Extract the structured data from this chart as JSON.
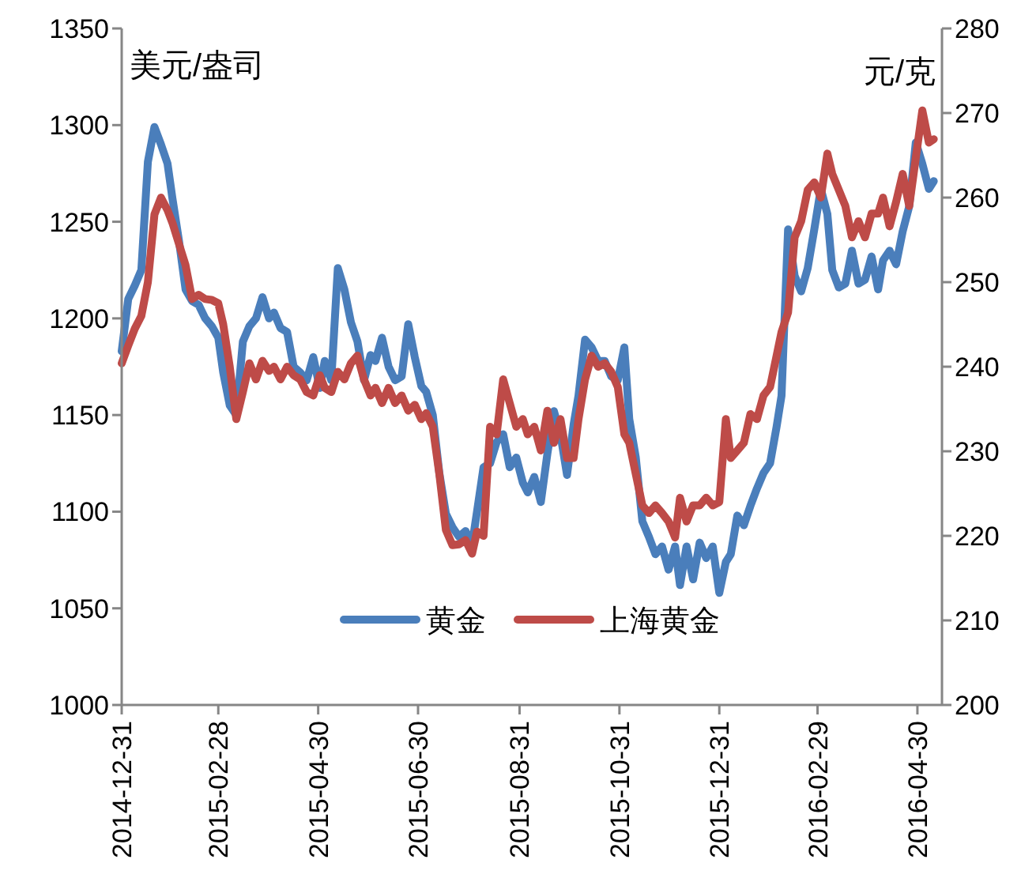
{
  "chart_data": {
    "type": "line",
    "ylabel": "美元/盎司",
    "y2label": "元/克",
    "x": [
      "2014-12-31",
      "2015-01-04",
      "2015-01-08",
      "2015-01-12",
      "2015-01-16",
      "2015-01-20",
      "2015-01-24",
      "2015-01-28",
      "2015-01-31",
      "2015-02-04",
      "2015-02-08",
      "2015-02-12",
      "2015-02-16",
      "2015-02-20",
      "2015-02-24",
      "2015-02-28",
      "2015-03-03",
      "2015-03-07",
      "2015-03-11",
      "2015-03-15",
      "2015-03-19",
      "2015-03-23",
      "2015-03-27",
      "2015-03-31",
      "2015-04-03",
      "2015-04-07",
      "2015-04-11",
      "2015-04-15",
      "2015-04-19",
      "2015-04-23",
      "2015-04-27",
      "2015-05-01",
      "2015-05-04",
      "2015-05-08",
      "2015-05-12",
      "2015-05-16",
      "2015-05-20",
      "2015-05-24",
      "2015-05-28",
      "2015-06-01",
      "2015-06-04",
      "2015-06-08",
      "2015-06-12",
      "2015-06-16",
      "2015-06-20",
      "2015-06-24",
      "2015-06-28",
      "2015-07-02",
      "2015-07-05",
      "2015-07-09",
      "2015-07-13",
      "2015-07-17",
      "2015-07-21",
      "2015-07-25",
      "2015-07-29",
      "2015-08-02",
      "2015-08-05",
      "2015-08-09",
      "2015-08-13",
      "2015-08-17",
      "2015-08-21",
      "2015-08-25",
      "2015-08-29",
      "2015-09-02",
      "2015-09-05",
      "2015-09-09",
      "2015-09-13",
      "2015-09-17",
      "2015-09-21",
      "2015-09-25",
      "2015-09-29",
      "2015-10-03",
      "2015-10-06",
      "2015-10-10",
      "2015-10-14",
      "2015-10-18",
      "2015-10-22",
      "2015-10-26",
      "2015-10-30",
      "2015-11-03",
      "2015-11-06",
      "2015-11-10",
      "2015-11-14",
      "2015-11-18",
      "2015-11-22",
      "2015-11-26",
      "2015-11-30",
      "2015-12-04",
      "2015-12-07",
      "2015-12-11",
      "2015-12-15",
      "2015-12-19",
      "2015-12-23",
      "2015-12-27",
      "2015-12-31",
      "2016-01-04",
      "2016-01-07",
      "2016-01-11",
      "2016-01-15",
      "2016-01-19",
      "2016-01-23",
      "2016-01-27",
      "2016-01-31",
      "2016-02-04",
      "2016-02-07",
      "2016-02-11",
      "2016-02-15",
      "2016-02-19",
      "2016-02-23",
      "2016-02-27",
      "2016-03-02",
      "2016-03-06",
      "2016-03-09",
      "2016-03-13",
      "2016-03-17",
      "2016-03-21",
      "2016-03-25",
      "2016-03-29",
      "2016-04-02",
      "2016-04-06",
      "2016-04-09",
      "2016-04-13",
      "2016-04-17",
      "2016-04-21",
      "2016-04-25",
      "2016-04-29",
      "2016-05-03",
      "2016-05-07",
      "2016-05-10"
    ],
    "series": [
      {
        "name": "黄金",
        "color": "#4a7ebb",
        "axis": "y",
        "values": [
          1183,
          1210,
          1217,
          1225,
          1281,
          1299,
          1290,
          1280,
          1262,
          1240,
          1215,
          1209,
          1207,
          1200,
          1196,
          1190,
          1172,
          1155,
          1150,
          1188,
          1196,
          1200,
          1211,
          1200,
          1203,
          1195,
          1193,
          1175,
          1172,
          1168,
          1180,
          1164,
          1178,
          1168,
          1226,
          1215,
          1198,
          1188,
          1168,
          1181,
          1178,
          1190,
          1175,
          1168,
          1170,
          1197,
          1180,
          1165,
          1162,
          1150,
          1120,
          1099,
          1092,
          1087,
          1090,
          1083,
          1100,
          1123,
          1125,
          1136,
          1140,
          1123,
          1128,
          1115,
          1110,
          1118,
          1105,
          1130,
          1152,
          1140,
          1119,
          1145,
          1160,
          1189,
          1185,
          1178,
          1178,
          1170,
          1168,
          1185,
          1148,
          1128,
          1095,
          1087,
          1078,
          1082,
          1070,
          1082,
          1062,
          1082,
          1065,
          1084,
          1076,
          1082,
          1058,
          1074,
          1078,
          1098,
          1093,
          1103,
          1112,
          1120,
          1125,
          1144,
          1160,
          1246,
          1222,
          1214,
          1226,
          1246,
          1267,
          1254,
          1225,
          1216,
          1218,
          1235,
          1218,
          1220,
          1232,
          1215,
          1230,
          1235,
          1228,
          1245,
          1258,
          1291,
          1280,
          1267,
          1271
        ]
      },
      {
        "name": "上海黄金",
        "color": "#be4b48",
        "axis": "y2",
        "values": [
          240.4,
          242.5,
          244.5,
          246,
          250,
          258,
          260,
          258.5,
          257,
          254.5,
          252,
          248,
          248.5,
          248,
          247.9,
          247.5,
          245,
          240,
          233.8,
          237,
          240.4,
          238.5,
          240.7,
          239.5,
          240,
          238.5,
          240,
          239,
          238.5,
          237,
          236.6,
          239,
          237.5,
          237,
          239.4,
          238.5,
          240.4,
          241.3,
          238.5,
          236.6,
          237.5,
          235.7,
          237.5,
          235.7,
          236.6,
          234.8,
          235.5,
          233.8,
          234.5,
          232.9,
          227.3,
          220.7,
          218.9,
          219,
          219.5,
          217.9,
          220.5,
          220,
          232.9,
          232,
          238.5,
          235.7,
          232.9,
          233.8,
          232,
          232.9,
          230.1,
          234.8,
          231,
          233.8,
          229.2,
          229.2,
          233.8,
          238.5,
          241.3,
          240,
          240.4,
          239.4,
          237.6,
          232,
          231,
          227.3,
          223.6,
          222.7,
          223.6,
          222.7,
          221.7,
          219.8,
          224.5,
          221.7,
          223.6,
          223.6,
          224.5,
          223.6,
          224,
          233.8,
          229.2,
          230.1,
          231,
          234.4,
          233.8,
          236.6,
          237.6,
          241.3,
          244.1,
          246.4,
          255.3,
          257.2,
          260.9,
          261.8,
          260,
          265.2,
          262.8,
          260.9,
          259,
          255.3,
          257.2,
          255.3,
          258.1,
          258.1,
          260,
          256.6,
          259.5,
          262.8,
          259,
          264.7,
          270.3,
          266.5,
          266.9
        ]
      }
    ],
    "xlim": [
      "2014-12-31",
      "2016-05-15"
    ],
    "xticks": [
      "2014-12-31",
      "2015-02-28",
      "2015-04-30",
      "2015-06-30",
      "2015-08-31",
      "2015-10-31",
      "2015-12-31",
      "2016-02-29",
      "2016-04-30"
    ],
    "ylim": [
      1000,
      1350
    ],
    "yticks": [
      1000,
      1050,
      1100,
      1150,
      1200,
      1250,
      1300,
      1350
    ],
    "y2lim": [
      200,
      280
    ],
    "y2ticks": [
      200,
      210,
      220,
      230,
      240,
      250,
      260,
      270,
      280
    ],
    "legend": "bottom"
  }
}
